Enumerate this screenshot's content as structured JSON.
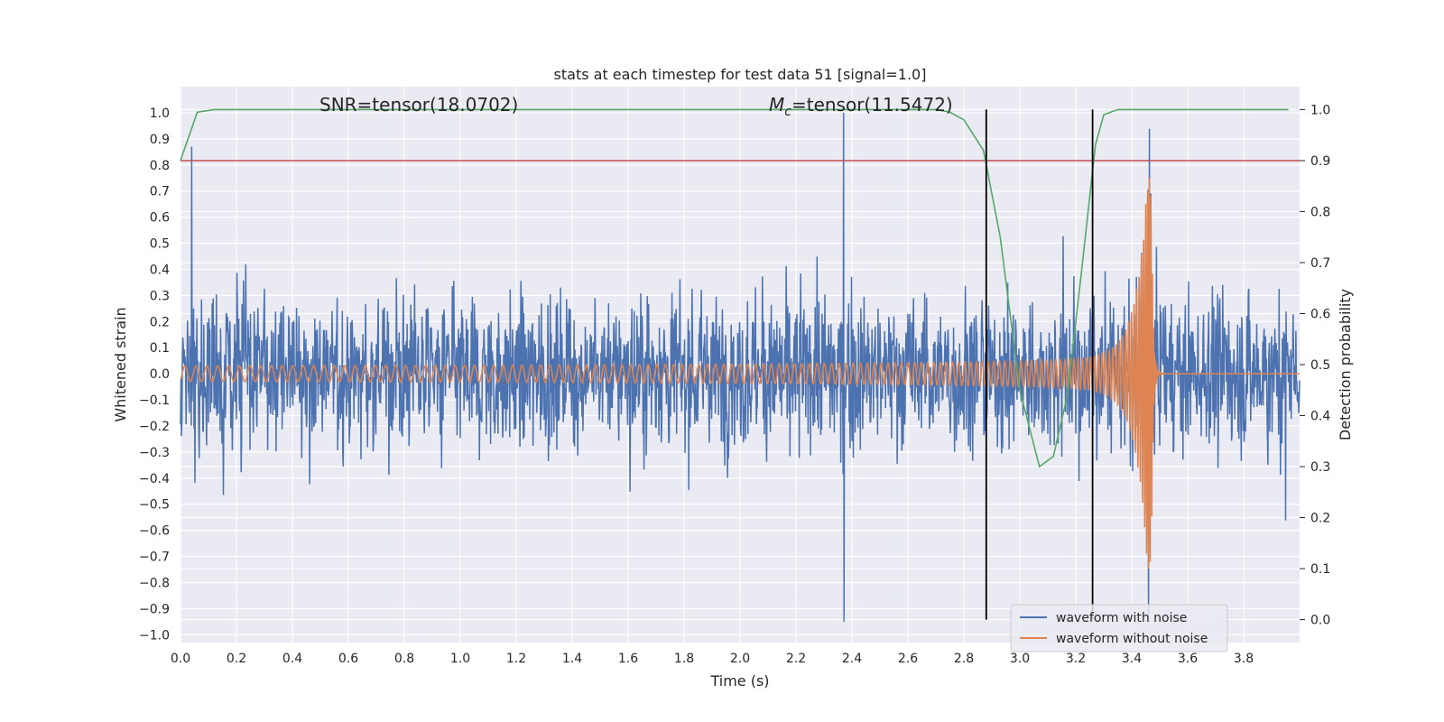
{
  "chart_data": {
    "type": "line",
    "title": "stats at each timestep for test data 51 [signal=1.0]",
    "xlabel": "Time (s)",
    "ylabel": "Whitened strain",
    "y2label": "Detection probability",
    "xlim": [
      0.0,
      4.0
    ],
    "ylim": [
      -1.03,
      1.1
    ],
    "y2lim": [
      -0.045,
      1.045
    ],
    "x_ticks": [
      "0.0",
      "0.2",
      "0.4",
      "0.6",
      "0.8",
      "1.0",
      "1.2",
      "1.4",
      "1.6",
      "1.8",
      "2.0",
      "2.2",
      "2.4",
      "2.6",
      "2.8",
      "3.0",
      "3.2",
      "3.4",
      "3.6",
      "3.8"
    ],
    "y_ticks": [
      "1.0",
      "0.9",
      "0.8",
      "0.7",
      "0.6",
      "0.5",
      "0.4",
      "0.3",
      "0.2",
      "0.1",
      "0.0",
      "−0.1",
      "−0.2",
      "−0.3",
      "−0.4",
      "−0.5",
      "−0.6",
      "−0.7",
      "−0.8",
      "−0.9",
      "−1.0"
    ],
    "y2_ticks": [
      "1.0",
      "0.9",
      "0.8",
      "0.7",
      "0.6",
      "0.5",
      "0.4",
      "0.3",
      "0.2",
      "0.1",
      "0.0"
    ],
    "grid": true,
    "legend_position": "lower-right",
    "annotations": {
      "snr": "SNR=tensor(18.0702)",
      "mc_symbol": "M",
      "mc_sub": "c",
      "mc_value": "=tensor(11.5472)"
    },
    "colors": {
      "noise": "#4c72b0",
      "clean": "#dd8452",
      "probability": "#55a868",
      "threshold": "#c44e52",
      "marker": "#000000",
      "plot_bg": "#eaeaf2",
      "grid": "#ffffff"
    },
    "series": [
      {
        "name": "waveform with noise",
        "description_values": "dense noisy strain, amplitude mostly within ±0.55 with spikes to 1.0 (t≈2.37) and −0.95 (t≈2.37), 0.87 at t≈0.04"
      },
      {
        "name": "waveform without noise",
        "description_values": "chirp: amplitude ~0.03 at t=0 growing to +0.77 / −0.58 at merger t≈3.47, ringdown to 0 by t≈3.5",
        "peak": {
          "x": 3.47,
          "y_max": 0.77,
          "y_min": -0.58
        }
      },
      {
        "name": "detection probability",
        "axis": "right",
        "x": [
          0.0,
          0.06,
          0.12,
          0.2,
          2.7,
          2.75,
          2.8,
          2.87,
          2.93,
          3.0,
          3.07,
          3.12,
          3.17,
          3.22,
          3.27,
          3.3,
          3.35,
          3.96
        ],
        "values": [
          0.9,
          0.995,
          1.0,
          1.0,
          1.0,
          0.995,
          0.98,
          0.92,
          0.75,
          0.45,
          0.3,
          0.32,
          0.44,
          0.68,
          0.93,
          0.99,
          1.0,
          1.0
        ]
      },
      {
        "name": "threshold",
        "axis": "right",
        "value": 0.9
      }
    ],
    "vertical_lines": [
      2.88,
      3.26
    ]
  }
}
